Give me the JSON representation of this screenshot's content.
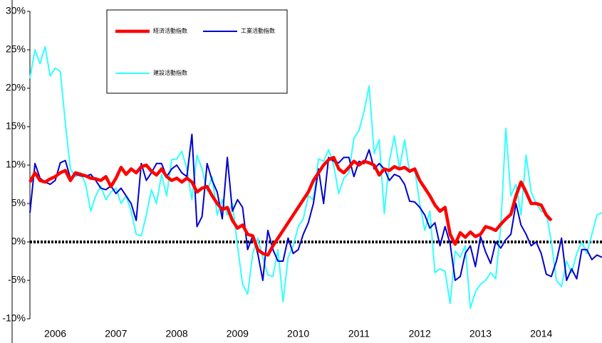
{
  "chart_data": {
    "type": "line",
    "categories": [
      null,
      null,
      null,
      null,
      null,
      "2006",
      null,
      null,
      null,
      null,
      null,
      null,
      null,
      null,
      null,
      null,
      null,
      "2007",
      null,
      null,
      null,
      null,
      null,
      null,
      null,
      null,
      null,
      null,
      null,
      "2008",
      null,
      null,
      null,
      null,
      null,
      null,
      null,
      null,
      null,
      null,
      null,
      "2009",
      null,
      null,
      null,
      null,
      null,
      null,
      null,
      null,
      null,
      null,
      null,
      "2010",
      null,
      null,
      null,
      null,
      null,
      null,
      null,
      null,
      null,
      null,
      null,
      "2011",
      null,
      null,
      null,
      null,
      null,
      null,
      null,
      null,
      null,
      null,
      null,
      "2012",
      null,
      null,
      null,
      null,
      null,
      null,
      null,
      null,
      null,
      null,
      null,
      "2013",
      null,
      null,
      null,
      null,
      null,
      null,
      null,
      null,
      null,
      null,
      null,
      "2014",
      null,
      null,
      null,
      null,
      null,
      null,
      null,
      null,
      null,
      null,
      null,
      null
    ],
    "series": [
      {
        "name": "経済活動指数",
        "color": "#ff0000",
        "values": [
          7.8,
          9,
          8,
          7.8,
          8.2,
          8.5,
          9,
          9.3,
          8,
          9,
          8.8,
          8.6,
          8.3,
          8.2,
          8,
          8.5,
          7.2,
          8.3,
          9.7,
          8.8,
          9.5,
          9,
          9.8,
          10,
          9.2,
          8.7,
          9.5,
          8.5,
          8,
          8.3,
          7.8,
          8.3,
          7.8,
          6.5,
          7,
          7.2,
          6,
          5,
          4.2,
          4.5,
          2.8,
          1.8,
          2.2,
          1,
          0.8,
          -1,
          -1.5,
          -1.7,
          -0.5,
          0.5,
          1.5,
          2.5,
          3.5,
          4.5,
          5.5,
          6.5,
          8,
          9,
          10,
          10.7,
          11,
          9.5,
          9,
          9.7,
          10.5,
          10,
          10.5,
          10.3,
          10,
          8.7,
          9.5,
          9.3,
          9.8,
          9.5,
          9.7,
          9.2,
          9.5,
          8,
          7,
          6,
          4.8,
          4,
          4.5,
          1,
          -0.3,
          1.2,
          0.6,
          1.3,
          0.7,
          1,
          2,
          1.8,
          1.5,
          2.3,
          3,
          3.6,
          6,
          7.8,
          6.5,
          5,
          5,
          4.8,
          3.5,
          2.8,
          null,
          null,
          null,
          null,
          null,
          null,
          null,
          null,
          null,
          null
        ]
      },
      {
        "name": "工業活動指数",
        "color": "#0000cc",
        "values": [
          3.8,
          10.2,
          8.3,
          7.8,
          7.5,
          8,
          10.3,
          10.6,
          8.3,
          8.8,
          8.6,
          8.5,
          8.8,
          8,
          7,
          6.8,
          7.3,
          6.3,
          7,
          6,
          5,
          2.8,
          10.2,
          8,
          9,
          10.2,
          10.2,
          8.5,
          9.5,
          10,
          9,
          8.5,
          14,
          2,
          3.3,
          10.2,
          8,
          6.5,
          3,
          11,
          4,
          5.5,
          4.5,
          -1,
          0.8,
          -1.5,
          -5,
          1.5,
          -1,
          -2.5,
          -2.5,
          0.5,
          -1.5,
          -1,
          1,
          2.5,
          5,
          9.5,
          5,
          11,
          10.5,
          10.3,
          11,
          11,
          8.5,
          10.5,
          10.2,
          12,
          9.5,
          10.2,
          9.5,
          8,
          8.8,
          8.5,
          7.5,
          5.3,
          5.2,
          4.5,
          3.5,
          1.8,
          2.5,
          -0.5,
          2,
          -0.2,
          -5,
          -4.5,
          -1.5,
          -0.5,
          -3.2,
          0.7,
          -1.3,
          -2.8,
          0,
          -0.8,
          0.3,
          1,
          5,
          2.2,
          1,
          -0.5,
          0,
          -1.5,
          -4.2,
          -4.5,
          -2.5,
          0.5,
          -5,
          -3.5,
          -4.8,
          -1,
          -1,
          -2.3,
          -1.7,
          -2
        ]
      },
      {
        "name": "建設活動指数",
        "color": "#33ffff",
        "values": [
          21.3,
          25,
          23.2,
          25.4,
          21.6,
          22.6,
          22.2,
          15.5,
          9.5,
          8.5,
          9,
          7.5,
          4,
          6,
          7.3,
          5.5,
          6.5,
          7,
          5,
          6,
          4,
          1,
          0.8,
          3.5,
          6.8,
          5,
          8.8,
          6,
          10.7,
          10.8,
          11.8,
          9.5,
          5.5,
          11.3,
          9.5,
          6.6,
          8.5,
          3.5,
          5.5,
          3.5,
          5,
          -0.5,
          -5.5,
          -6.8,
          -1.5,
          0.5,
          -2,
          -4.3,
          -4.5,
          -1,
          -7.8,
          -2,
          -0.5,
          2,
          3,
          6,
          5.5,
          10.8,
          10.5,
          12,
          10,
          6.3,
          8.3,
          9,
          13.5,
          14.5,
          17,
          20.3,
          11.5,
          13.3,
          3.7,
          10.5,
          13.8,
          9.5,
          13.3,
          9,
          9.5,
          5,
          1.5,
          4,
          -4,
          -3.5,
          -3.8,
          -8,
          -1.2,
          -2,
          -0.5,
          -8.6,
          -6.5,
          -5.5,
          -5,
          -4,
          -4.8,
          2,
          14.8,
          6,
          7.5,
          3.5,
          11.3,
          6.5,
          5,
          4,
          3.8,
          0,
          -5,
          -5.8,
          -2.5,
          -4,
          -1.5,
          0,
          -1.5,
          1,
          3.5,
          3.8
        ]
      }
    ],
    "ylim": [
      -10,
      30
    ],
    "yticks": [
      {
        "value": -10,
        "label": "-10%"
      },
      {
        "value": -5,
        "label": "-5%"
      },
      {
        "value": 0,
        "label": "0%"
      },
      {
        "value": 5,
        "label": "5%"
      },
      {
        "value": 10,
        "label": "10%"
      },
      {
        "value": 15,
        "label": "15%"
      },
      {
        "value": 20,
        "label": "20%"
      },
      {
        "value": 25,
        "label": "25%"
      },
      {
        "value": 30,
        "label": "30%"
      }
    ],
    "grid": false
  }
}
